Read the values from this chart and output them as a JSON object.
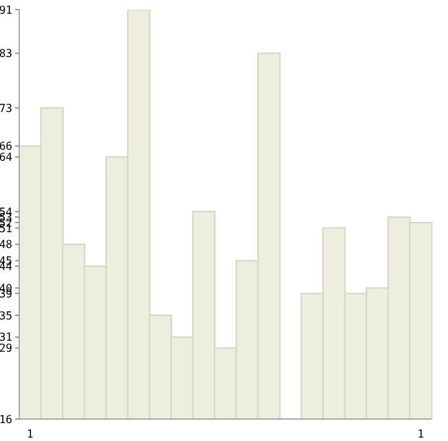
{
  "chart_data": {
    "type": "bar",
    "categories": [
      "1",
      null,
      null,
      null,
      null,
      null,
      null,
      null,
      null,
      null,
      null,
      null,
      null,
      null,
      null,
      null,
      null,
      null,
      "1"
    ],
    "values": [
      66,
      73,
      48,
      44,
      64,
      91,
      35,
      31,
      54,
      29,
      45,
      83,
      16,
      39,
      51,
      39,
      40,
      53,
      52
    ],
    "color": "#eeeedf",
    "ylim": [
      16,
      91
    ],
    "yticks": [
      16,
      29,
      31,
      35,
      39,
      40,
      44,
      45,
      48,
      51,
      52,
      53,
      54,
      64,
      66,
      73,
      83,
      91
    ],
    "grid": false
  }
}
